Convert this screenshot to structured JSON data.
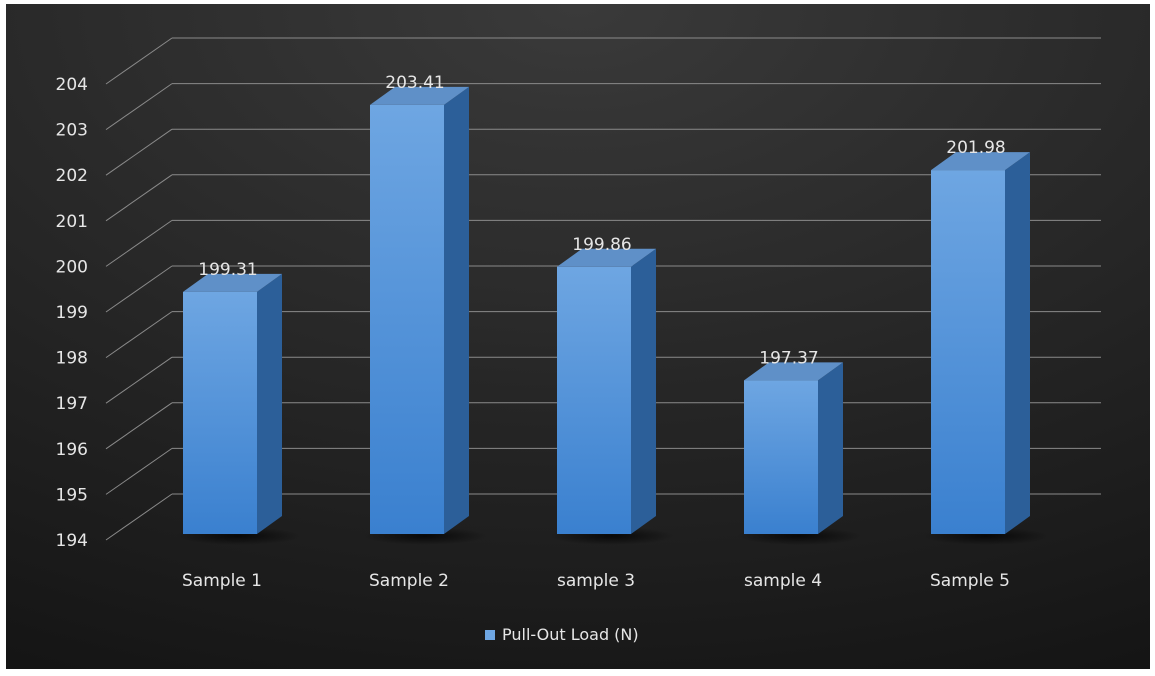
{
  "chart_data": {
    "type": "bar",
    "categories": [
      "Sample 1",
      "Sample 2",
      "sample 3",
      "sample 4",
      "Sample 5"
    ],
    "series": [
      {
        "name": "Pull-Out Load (N)",
        "values": [
          199.31,
          203.41,
          199.86,
          197.37,
          201.98
        ]
      }
    ],
    "data_labels": [
      "199.31",
      "203.41",
      "199.86",
      "197.37",
      "201.98"
    ],
    "ylim": [
      194,
      204
    ],
    "yticks": [
      194,
      195,
      196,
      197,
      198,
      199,
      200,
      201,
      202,
      203,
      204
    ],
    "grid": true,
    "legend_position": "bottom",
    "style": "3d-column",
    "colors": {
      "background_top": "#3a3a3a",
      "background_bottom": "#151515",
      "bar_front_top": "#6ea6e2",
      "bar_front_bottom": "#3a80cf",
      "bar_side": "#2c5f99",
      "bar_top": "#5f90c8",
      "gridline": "#8a8a8a",
      "text": "#e6e6e6"
    }
  }
}
